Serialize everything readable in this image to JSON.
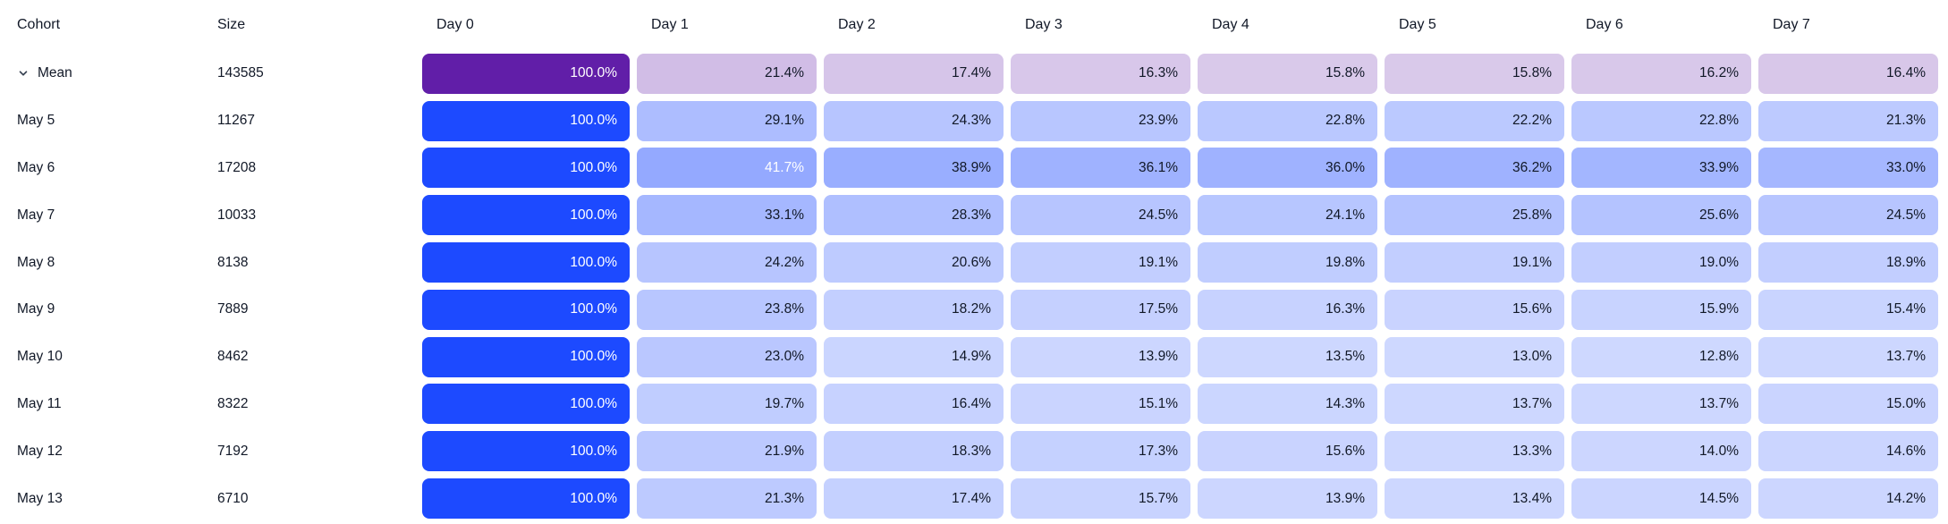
{
  "chart_data": {
    "type": "heatmap",
    "columns": [
      "Cohort",
      "Size",
      "Day 0",
      "Day 1",
      "Day 2",
      "Day 3",
      "Day 4",
      "Day 5",
      "Day 6",
      "Day 7"
    ],
    "rows": [
      {
        "cohort": "Mean",
        "size": "143585",
        "scheme": "purple",
        "expandable": true,
        "values": [
          100.0,
          21.4,
          17.4,
          16.3,
          15.8,
          15.8,
          16.2,
          16.4
        ]
      },
      {
        "cohort": "May 5",
        "size": "11267",
        "scheme": "blue",
        "expandable": false,
        "values": [
          100.0,
          29.1,
          24.3,
          23.9,
          22.8,
          22.2,
          22.8,
          21.3
        ]
      },
      {
        "cohort": "May 6",
        "size": "17208",
        "scheme": "blue",
        "expandable": false,
        "values": [
          100.0,
          41.7,
          38.9,
          36.1,
          36.0,
          36.2,
          33.9,
          33.0
        ]
      },
      {
        "cohort": "May 7",
        "size": "10033",
        "scheme": "blue",
        "expandable": false,
        "values": [
          100.0,
          33.1,
          28.3,
          24.5,
          24.1,
          25.8,
          25.6,
          24.5
        ]
      },
      {
        "cohort": "May 8",
        "size": "8138",
        "scheme": "blue",
        "expandable": false,
        "values": [
          100.0,
          24.2,
          20.6,
          19.1,
          19.8,
          19.1,
          19.0,
          18.9
        ]
      },
      {
        "cohort": "May 9",
        "size": "7889",
        "scheme": "blue",
        "expandable": false,
        "values": [
          100.0,
          23.8,
          18.2,
          17.5,
          16.3,
          15.6,
          15.9,
          15.4
        ]
      },
      {
        "cohort": "May 10",
        "size": "8462",
        "scheme": "blue",
        "expandable": false,
        "values": [
          100.0,
          23.0,
          14.9,
          13.9,
          13.5,
          13.0,
          12.8,
          13.7
        ]
      },
      {
        "cohort": "May 11",
        "size": "8322",
        "scheme": "blue",
        "expandable": false,
        "values": [
          100.0,
          19.7,
          16.4,
          15.1,
          14.3,
          13.7,
          13.7,
          15.0
        ]
      },
      {
        "cohort": "May 12",
        "size": "7192",
        "scheme": "blue",
        "expandable": false,
        "values": [
          100.0,
          21.9,
          18.3,
          17.3,
          15.6,
          13.3,
          14.0,
          14.6
        ]
      },
      {
        "cohort": "May 13",
        "size": "6710",
        "scheme": "blue",
        "expandable": false,
        "values": [
          100.0,
          21.3,
          17.4,
          15.7,
          13.9,
          13.4,
          14.5,
          14.2
        ]
      }
    ],
    "value_format": "percent_1dp",
    "colors": {
      "blue_base": "#1D4AFF",
      "purple_base": "#611EA8",
      "text_dark": "#111827",
      "text_light": "#FFFFFF"
    },
    "white_text_threshold": 40,
    "layout": {
      "legend": "none",
      "grid": "off"
    }
  }
}
